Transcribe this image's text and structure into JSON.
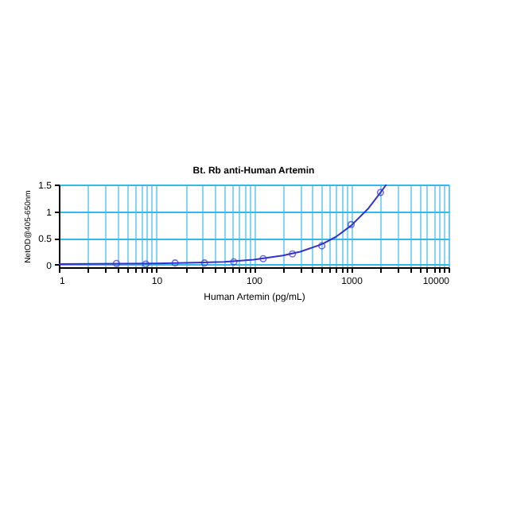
{
  "chart_data": {
    "type": "scatter",
    "title": "Bt. Rb anti-Human Artemin",
    "xlabel": "Human Artemin (pg/mL)",
    "ylabel": "NetOD@405-650nm",
    "log": "x",
    "grid": true,
    "marker": "circle",
    "xlim": [
      1,
      10000
    ],
    "ylim": [
      -0.05,
      1.5
    ],
    "xticks": [
      1,
      {
        "value": 2,
        "label": null
      },
      {
        "value": 3,
        "label": null
      },
      {
        "value": 4,
        "label": null
      },
      {
        "value": 5,
        "label": null
      },
      {
        "value": 6,
        "label": null
      },
      {
        "value": 7,
        "label": null
      },
      {
        "value": 8,
        "label": null
      },
      {
        "value": 9,
        "label": null
      },
      10,
      {
        "value": 20,
        "label": null
      },
      {
        "value": 30,
        "label": null
      },
      {
        "value": 40,
        "label": null
      },
      {
        "value": 50,
        "label": null
      },
      {
        "value": 60,
        "label": null
      },
      {
        "value": 70,
        "label": null
      },
      {
        "value": 80,
        "label": null
      },
      {
        "value": 90,
        "label": null
      },
      100,
      {
        "value": 200,
        "label": null
      },
      {
        "value": 300,
        "label": null
      },
      {
        "value": 400,
        "label": null
      },
      {
        "value": 500,
        "label": null
      },
      {
        "value": 600,
        "label": null
      },
      {
        "value": 700,
        "label": null
      },
      {
        "value": 800,
        "label": null
      },
      {
        "value": 900,
        "label": null
      },
      1000,
      {
        "value": 2000,
        "label": null
      },
      {
        "value": 3000,
        "label": null
      },
      {
        "value": 4000,
        "label": null
      },
      {
        "value": 5000,
        "label": null
      },
      {
        "value": 6000,
        "label": null
      },
      {
        "value": 7000,
        "label": null
      },
      {
        "value": 8000,
        "label": null
      },
      {
        "value": 9000,
        "label": null
      },
      10000
    ],
    "yticks": [
      0,
      0.5,
      1,
      1.5
    ],
    "series": [
      {
        "color": "#3333cc",
        "x": [
          3.9,
          7.8,
          15.6,
          31.25,
          62.5,
          125,
          250,
          500,
          1000,
          2000
        ],
        "values": [
          0.02,
          0.01,
          0.03,
          0.03,
          0.05,
          0.11,
          0.2,
          0.35,
          0.75,
          1.35
        ]
      },
      {
        "type": "line",
        "color": "#3333cc",
        "marker": "none",
        "x": [
          1,
          10,
          50,
          100,
          200,
          300,
          500,
          700,
          1000,
          1500,
          2000,
          2300
        ],
        "values": [
          0.01,
          0.02,
          0.05,
          0.09,
          0.17,
          0.24,
          0.38,
          0.52,
          0.73,
          1.05,
          1.35,
          1.5
        ]
      }
    ]
  }
}
